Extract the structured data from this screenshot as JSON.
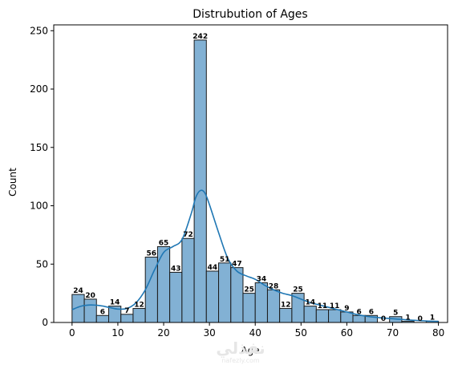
{
  "chart_data": {
    "type": "bar",
    "title": "Distrubution of Ages",
    "xlabel": "Age",
    "ylabel": "Count",
    "xlim": [
      -4,
      82
    ],
    "ylim": [
      0,
      255
    ],
    "xticks": [
      0,
      10,
      20,
      30,
      40,
      50,
      60,
      70,
      80
    ],
    "yticks": [
      0,
      50,
      100,
      150,
      200,
      250
    ],
    "bin_edges": [
      0,
      2.67,
      5.33,
      8,
      10.67,
      13.33,
      16,
      18.67,
      21.33,
      24,
      26.67,
      29.33,
      32,
      34.67,
      37.33,
      40,
      42.67,
      45.33,
      48,
      50.67,
      53.33,
      56,
      58.67,
      61.33,
      64,
      66.67,
      69.33,
      72,
      74.67,
      77.33,
      80
    ],
    "values": [
      24,
      20,
      6,
      14,
      7,
      12,
      56,
      65,
      43,
      72,
      242,
      44,
      51,
      47,
      25,
      34,
      28,
      12,
      25,
      14,
      11,
      11,
      9,
      6,
      6,
      0,
      5,
      1,
      0,
      1
    ],
    "kde": {
      "x": [
        0,
        2,
        4,
        6,
        8,
        10,
        12,
        14,
        16,
        18,
        20,
        22,
        24,
        26,
        27,
        28,
        29,
        30,
        32,
        34,
        36,
        38,
        40,
        42,
        44,
        46,
        48,
        50,
        52,
        54,
        56,
        58,
        60,
        62,
        64,
        66,
        68,
        70,
        72,
        74,
        76,
        78,
        80
      ],
      "y": [
        11,
        14,
        15,
        14.5,
        13,
        11.5,
        12,
        17,
        28,
        45,
        60,
        65,
        71,
        93,
        107,
        113,
        111,
        101,
        77,
        55,
        44,
        40,
        37,
        32,
        28,
        25,
        23,
        20,
        17,
        15,
        13,
        11,
        9,
        7,
        5.5,
        4.5,
        3.8,
        3.2,
        2.6,
        2,
        1.6,
        1.2,
        1
      ]
    },
    "bar_color": "#82b1d4",
    "bar_edge_color": "#1a1a1a",
    "kde_color": "#1f77b4",
    "grid": false,
    "legend": false
  },
  "watermark": {
    "main": "نفذلي",
    "sub": "nafezly.com"
  }
}
